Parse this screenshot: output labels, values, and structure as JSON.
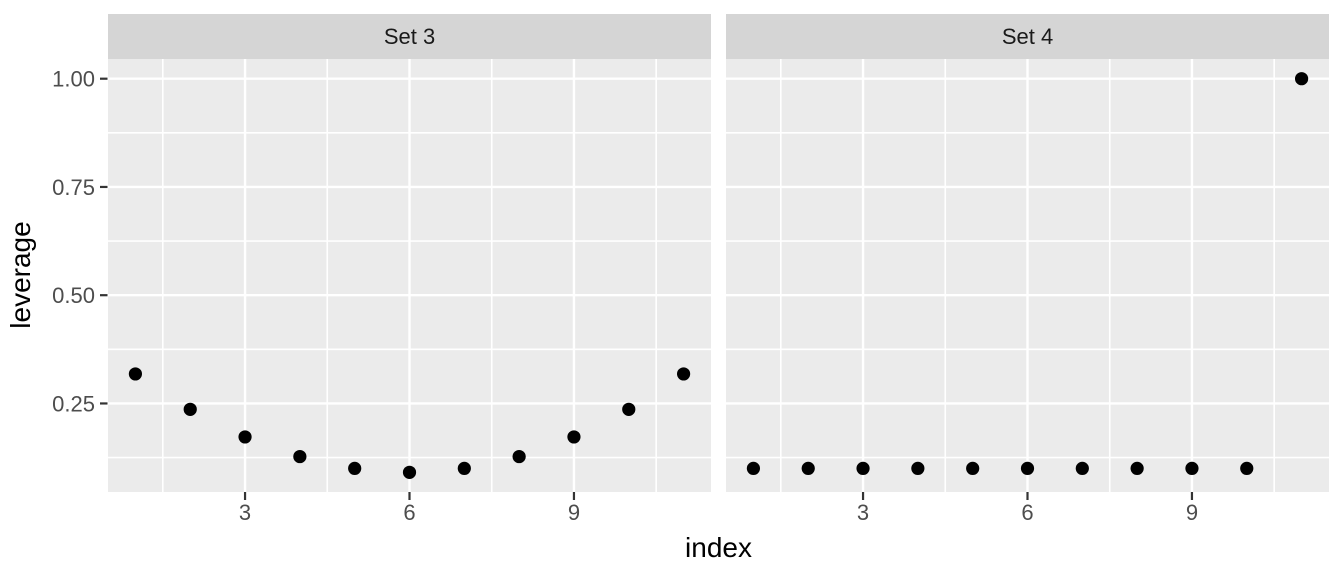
{
  "chart_data": {
    "type": "scatter",
    "title": "",
    "xlabel": "index",
    "ylabel": "leverage",
    "legend": "none",
    "grid": "major+minor",
    "facets": [
      {
        "label": "Set 3",
        "x": [
          1,
          2,
          3,
          4,
          5,
          6,
          7,
          8,
          9,
          10,
          11
        ],
        "leverage": [
          0.3182,
          0.2364,
          0.1727,
          0.1273,
          0.1,
          0.0909,
          0.1,
          0.1273,
          0.1727,
          0.2364,
          0.3182
        ]
      },
      {
        "label": "Set 4",
        "x": [
          1,
          2,
          3,
          4,
          5,
          6,
          7,
          8,
          9,
          10,
          11
        ],
        "leverage": [
          0.1,
          0.1,
          0.1,
          0.1,
          0.1,
          0.1,
          0.1,
          0.1,
          0.1,
          0.1,
          1.0
        ]
      }
    ],
    "x_ticks": {
      "values": [
        3,
        6,
        9
      ],
      "labels": [
        "3",
        "6",
        "9"
      ]
    },
    "y_ticks": {
      "values": [
        0.25,
        0.5,
        0.75,
        1.0
      ],
      "labels": [
        "0.25",
        "0.50",
        "0.75",
        "1.00"
      ]
    },
    "x_minor": [
      1.5,
      4.5,
      7.5,
      10.5
    ],
    "y_minor": [
      0.125,
      0.375,
      0.625,
      0.875
    ],
    "xlim": [
      0.5,
      11.5
    ],
    "ylim": [
      0.0455,
      1.0455
    ],
    "colors": {
      "background": "#FFFFFF",
      "panel_bg": "#EBEBEB",
      "strip_bg": "#D5D5D5",
      "grid": "#FFFFFF",
      "point": "#000000",
      "tick_mark": "#333333",
      "tick_label": "#4D4D4D",
      "axis_title": "#000000",
      "strip_text": "#1A1A1A"
    }
  }
}
